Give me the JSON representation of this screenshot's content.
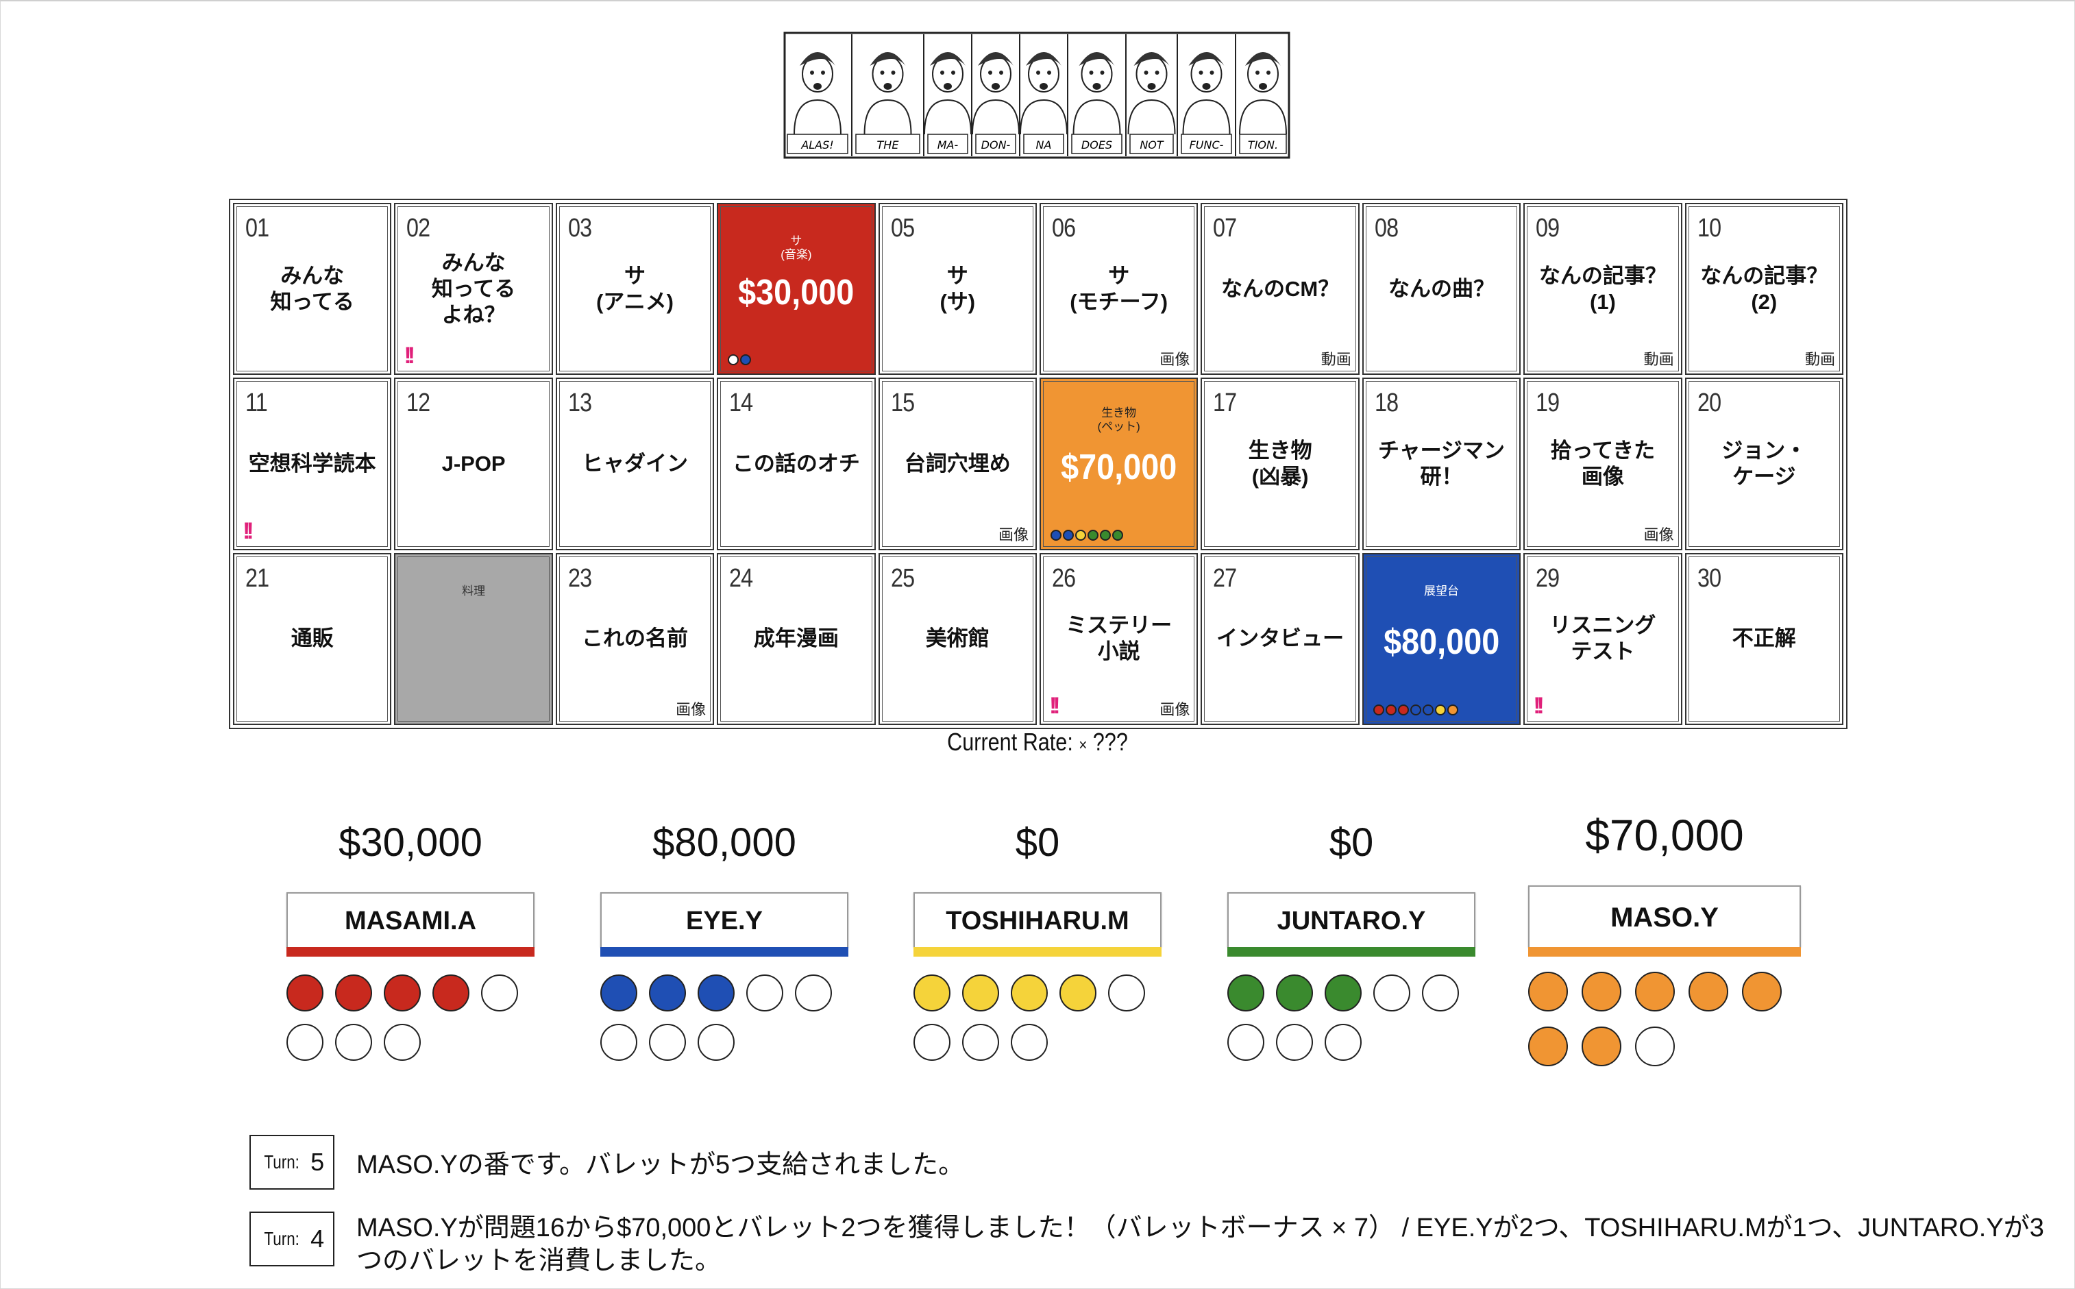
{
  "banner": {
    "panels": [
      "ALAS!",
      "THE",
      "MA-",
      "DON-",
      "NA",
      "DOES",
      "NOT",
      "FUNC-",
      "TION."
    ]
  },
  "board": {
    "cells": [
      {
        "num": "01",
        "label": "みんな\n知ってる"
      },
      {
        "num": "02",
        "label": "みんな\n知ってる\nよね？",
        "mark": "!!"
      },
      {
        "num": "03",
        "label": "サ\n(アニメ)"
      },
      {
        "num": "",
        "category": "サ\n(音楽)",
        "amount": "$30,000",
        "style": "red",
        "owners": [
          "#ffffff",
          "#1f4fb4"
        ]
      },
      {
        "num": "05",
        "label": "サ\n(サ)"
      },
      {
        "num": "06",
        "label": "サ\n(モチーフ)",
        "media": "画像"
      },
      {
        "num": "07",
        "label": "なんのCM？",
        "media": "動画"
      },
      {
        "num": "08",
        "label": "なんの曲？"
      },
      {
        "num": "09",
        "label": "なんの記事？\n(1)",
        "media": "動画"
      },
      {
        "num": "10",
        "label": "なんの記事？\n(2)",
        "media": "動画"
      },
      {
        "num": "11",
        "label": "空想科学読本",
        "mark": "!!"
      },
      {
        "num": "12",
        "label": "J-POP"
      },
      {
        "num": "13",
        "label": "ヒャダイン"
      },
      {
        "num": "14",
        "label": "この話のオチ"
      },
      {
        "num": "15",
        "label": "台詞穴埋め",
        "media": "画像"
      },
      {
        "num": "",
        "category": "生き物\n(ペット)",
        "amount": "$70,000",
        "style": "orange",
        "owners": [
          "#1f4fb4",
          "#1f4fb4",
          "#f5d33a",
          "#3a8a2e",
          "#3a8a2e",
          "#3a8a2e"
        ]
      },
      {
        "num": "17",
        "label": "生き物\n(凶暴)"
      },
      {
        "num": "18",
        "label": "チャージマン\n研！"
      },
      {
        "num": "19",
        "label": "拾ってきた\n画像",
        "media": "画像"
      },
      {
        "num": "20",
        "label": "ジョン・\nケージ"
      },
      {
        "num": "21",
        "label": "通販"
      },
      {
        "num": "",
        "category": "料理",
        "style": "gray"
      },
      {
        "num": "23",
        "label": "これの名前",
        "media": "画像"
      },
      {
        "num": "24",
        "label": "成年漫画"
      },
      {
        "num": "25",
        "label": "美術館"
      },
      {
        "num": "26",
        "label": "ミステリー\n小説",
        "media": "画像",
        "mark": "!!"
      },
      {
        "num": "27",
        "label": "インタビュー"
      },
      {
        "num": "",
        "category": "展望台",
        "amount": "$80,000",
        "style": "blue",
        "owners": [
          "#c8291e",
          "#c8291e",
          "#c8291e",
          "#1f4fb4",
          "#1f4fb4",
          "#f5d33a",
          "#f09533"
        ]
      },
      {
        "num": "29",
        "label": "リスニング\nテスト",
        "mark": "!!"
      },
      {
        "num": "30",
        "label": "不正解"
      }
    ]
  },
  "rate": {
    "label": "Current Rate:",
    "symbol": "×",
    "value": "???"
  },
  "players": [
    {
      "name": "MASAMI.A",
      "money": "$30,000",
      "color": "#c8291e",
      "bullets": 8,
      "filled": 4
    },
    {
      "name": "EYE.Y",
      "money": "$80,000",
      "color": "#1f4fb4",
      "bullets": 8,
      "filled": 3
    },
    {
      "name": "TOSHIHARU.M",
      "money": "$0",
      "color": "#f5d33a",
      "bullets": 8,
      "filled": 4
    },
    {
      "name": "JUNTARO.Y",
      "money": "$0",
      "color": "#3a8a2e",
      "bullets": 8,
      "filled": 3
    },
    {
      "name": "MASO.Y",
      "money": "$70,000",
      "color": "#f09533",
      "bullets": 8,
      "filled": 7,
      "active": true
    }
  ],
  "turns": [
    {
      "label": "Turn:",
      "number": "5",
      "text": "MASO.Yの番です。バレットが5つ支給されました。"
    },
    {
      "label": "Turn:",
      "number": "4",
      "text": "MASO.Yが問題16から$70,000とバレット2つを獲得しました！（バレットボーナス × 7） / EYE.Yが2つ、TOSHIHARU.Mが1つ、JUNTARO.Yが3つのバレットを消費しました。"
    }
  ]
}
